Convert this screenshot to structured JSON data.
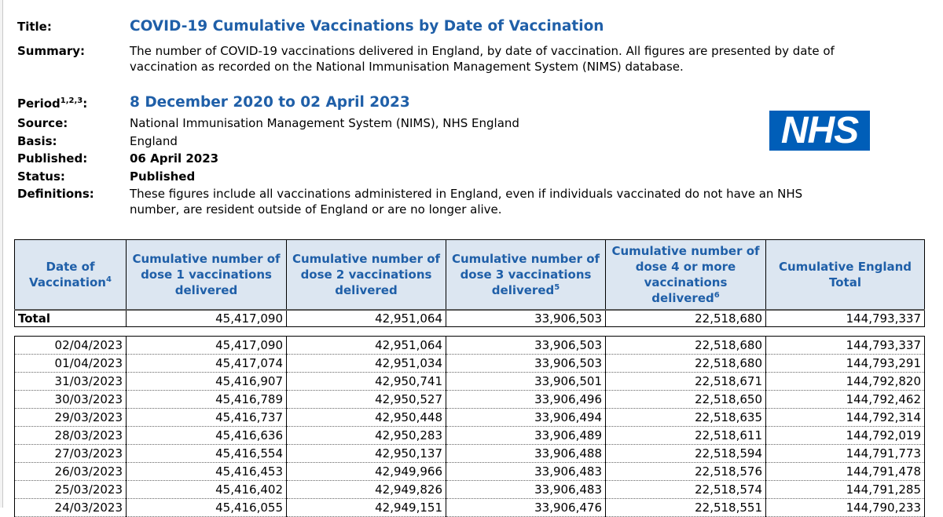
{
  "meta": {
    "title_label": "Title:",
    "title": "COVID-19 Cumulative Vaccinations by Date of Vaccination",
    "summary_label": "Summary:",
    "summary_line1": "The number of COVID-19 vaccinations delivered in England, by date of vaccination. All figures are presented by date of",
    "summary_line2": "vaccination as recorded on the National Immunisation Management System (NIMS) database.",
    "period_label": "Period",
    "period_sup": "1,2,3",
    "period": "8 December 2020 to 02 April 2023",
    "source_label": "Source:",
    "source": "National Immunisation Management System (NIMS), NHS England",
    "basis_label": "Basis:",
    "basis": "England",
    "published_label": "Published:",
    "published": "06 April 2023",
    "status_label": "Status:",
    "status": "Published",
    "definitions_label": "Definitions:",
    "definitions_line1": "These figures include all vaccinations administered in England, even if individuals vaccinated do not have an NHS",
    "definitions_line2": "number, are resident outside of England or are no longer alive."
  },
  "logo": {
    "text": "NHS",
    "color": "#005eb8"
  },
  "table": {
    "headers": [
      {
        "text": "Date of Vaccination",
        "sup": "4"
      },
      {
        "text": "Cumulative number of dose 1 vaccinations delivered",
        "sup": ""
      },
      {
        "text": "Cumulative number of dose 2 vaccinations delivered",
        "sup": ""
      },
      {
        "text": "Cumulative number of dose 3 vaccinations delivered",
        "sup": "5"
      },
      {
        "text": "Cumulative number of dose 4 or more vaccinations delivered",
        "sup": "6"
      },
      {
        "text": "Cumulative England Total",
        "sup": ""
      }
    ],
    "total": [
      "Total",
      "45,417,090",
      "42,951,064",
      "33,906,503",
      "22,518,680",
      "144,793,337"
    ],
    "rows": [
      [
        "02/04/2023",
        "45,417,090",
        "42,951,064",
        "33,906,503",
        "22,518,680",
        "144,793,337"
      ],
      [
        "01/04/2023",
        "45,417,074",
        "42,951,034",
        "33,906,503",
        "22,518,680",
        "144,793,291"
      ],
      [
        "31/03/2023",
        "45,416,907",
        "42,950,741",
        "33,906,501",
        "22,518,671",
        "144,792,820"
      ],
      [
        "30/03/2023",
        "45,416,789",
        "42,950,527",
        "33,906,496",
        "22,518,650",
        "144,792,462"
      ],
      [
        "29/03/2023",
        "45,416,737",
        "42,950,448",
        "33,906,494",
        "22,518,635",
        "144,792,314"
      ],
      [
        "28/03/2023",
        "45,416,636",
        "42,950,283",
        "33,906,489",
        "22,518,611",
        "144,792,019"
      ],
      [
        "27/03/2023",
        "45,416,554",
        "42,950,137",
        "33,906,488",
        "22,518,594",
        "144,791,773"
      ],
      [
        "26/03/2023",
        "45,416,453",
        "42,949,966",
        "33,906,483",
        "22,518,576",
        "144,791,478"
      ],
      [
        "25/03/2023",
        "45,416,402",
        "42,949,826",
        "33,906,483",
        "22,518,574",
        "144,791,285"
      ],
      [
        "24/03/2023",
        "45,416,055",
        "42,949,151",
        "33,906,476",
        "22,518,551",
        "144,790,233"
      ]
    ]
  },
  "colors": {
    "accent": "#1f5fa8",
    "header_bg": "#dce6f1"
  }
}
